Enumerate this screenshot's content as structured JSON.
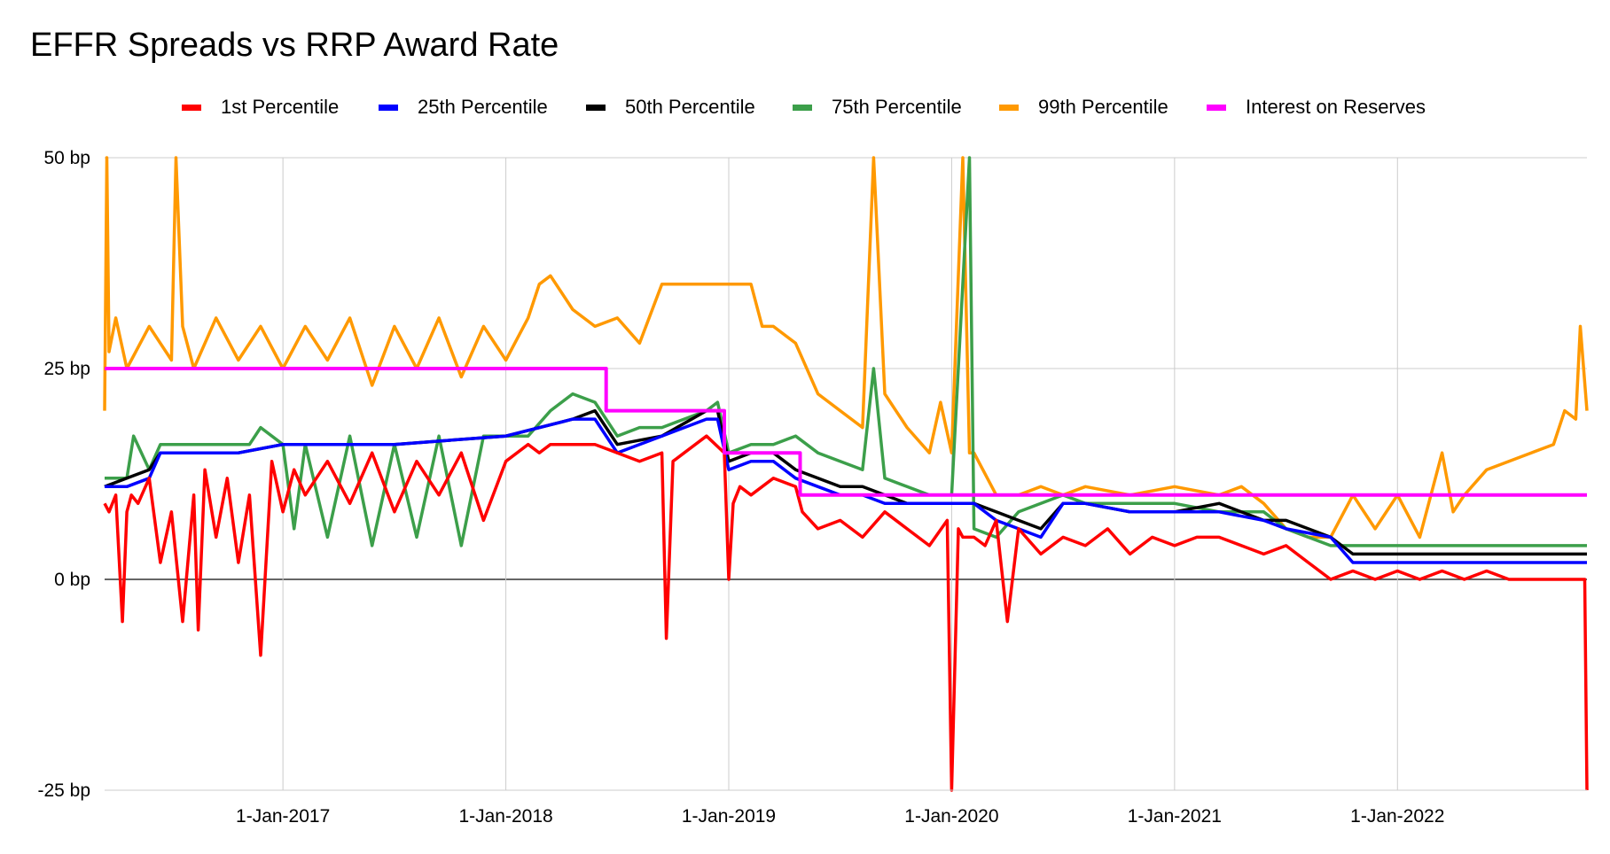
{
  "chart_data": {
    "type": "line",
    "title": "EFFR Spreads vs RRP Award Rate",
    "xlabel": "",
    "ylabel": "",
    "xlim": [
      2016.2,
      2022.85
    ],
    "ylim": [
      -25,
      50
    ],
    "y_ticks": [
      {
        "value": 50,
        "label": "50 bp"
      },
      {
        "value": 25,
        "label": "25 bp"
      },
      {
        "value": 0,
        "label": "0 bp"
      },
      {
        "value": -25,
        "label": "-25 bp"
      }
    ],
    "x_ticks": [
      {
        "value": 2017.0,
        "label": "1-Jan-2017"
      },
      {
        "value": 2018.0,
        "label": "1-Jan-2018"
      },
      {
        "value": 2019.0,
        "label": "1-Jan-2019"
      },
      {
        "value": 2020.0,
        "label": "1-Jan-2020"
      },
      {
        "value": 2021.0,
        "label": "1-Jan-2021"
      },
      {
        "value": 2022.0,
        "label": "1-Jan-2022"
      }
    ],
    "grid": true,
    "legend_position": "top",
    "series": [
      {
        "name": "1st Percentile",
        "color": "#ff0000",
        "x": [
          2016.2,
          2016.22,
          2016.25,
          2016.28,
          2016.3,
          2016.32,
          2016.35,
          2016.4,
          2016.45,
          2016.5,
          2016.55,
          2016.6,
          2016.62,
          2016.65,
          2016.7,
          2016.75,
          2016.8,
          2016.85,
          2016.9,
          2016.95,
          2017.0,
          2017.05,
          2017.1,
          2017.2,
          2017.3,
          2017.4,
          2017.5,
          2017.6,
          2017.7,
          2017.8,
          2017.9,
          2018.0,
          2018.1,
          2018.15,
          2018.2,
          2018.3,
          2018.4,
          2018.5,
          2018.6,
          2018.7,
          2018.72,
          2018.75,
          2018.8,
          2018.9,
          2018.98,
          2019.0,
          2019.02,
          2019.05,
          2019.1,
          2019.2,
          2019.3,
          2019.33,
          2019.4,
          2019.5,
          2019.6,
          2019.7,
          2019.8,
          2019.9,
          2019.98,
          2020.0,
          2020.03,
          2020.05,
          2020.1,
          2020.15,
          2020.2,
          2020.25,
          2020.3,
          2020.4,
          2020.5,
          2020.6,
          2020.7,
          2020.8,
          2020.9,
          2021.0,
          2021.1,
          2021.2,
          2021.3,
          2021.4,
          2021.5,
          2021.6,
          2021.7,
          2021.8,
          2021.9,
          2022.0,
          2022.1,
          2022.2,
          2022.3,
          2022.4,
          2022.5,
          2022.6,
          2022.7,
          2022.8,
          2022.84,
          2022.85
        ],
        "y": [
          9,
          8,
          10,
          -5,
          8,
          10,
          9,
          12,
          2,
          8,
          -5,
          10,
          -6,
          13,
          5,
          12,
          2,
          10,
          -9,
          14,
          8,
          13,
          10,
          14,
          9,
          15,
          8,
          14,
          10,
          15,
          7,
          14,
          16,
          15,
          16,
          16,
          16,
          15,
          14,
          15,
          -7,
          14,
          15,
          17,
          15,
          0,
          9,
          11,
          10,
          12,
          11,
          8,
          6,
          7,
          5,
          8,
          6,
          4,
          7,
          -25,
          6,
          5,
          5,
          4,
          7,
          -5,
          6,
          3,
          5,
          4,
          6,
          3,
          5,
          4,
          5,
          5,
          4,
          3,
          4,
          2,
          0,
          1,
          0,
          1,
          0,
          1,
          0,
          1,
          0,
          0,
          0,
          0,
          0,
          -25
        ]
      },
      {
        "name": "25th Percentile",
        "color": "#0000ff",
        "x": [
          2016.2,
          2016.3,
          2016.4,
          2016.45,
          2016.5,
          2016.7,
          2016.8,
          2017.0,
          2017.5,
          2018.0,
          2018.3,
          2018.4,
          2018.5,
          2018.7,
          2018.9,
          2018.95,
          2019.0,
          2019.1,
          2019.2,
          2019.3,
          2019.4,
          2019.5,
          2019.6,
          2019.7,
          2019.8,
          2019.9,
          2020.0,
          2020.1,
          2020.2,
          2020.3,
          2020.4,
          2020.5,
          2020.6,
          2020.8,
          2021.0,
          2021.2,
          2021.4,
          2021.5,
          2021.7,
          2021.8,
          2022.0,
          2022.2,
          2022.4,
          2022.6,
          2022.85
        ],
        "y": [
          11,
          11,
          12,
          15,
          15,
          15,
          15,
          16,
          16,
          17,
          19,
          19,
          15,
          17,
          19,
          19,
          13,
          14,
          14,
          12,
          11,
          10,
          10,
          9,
          9,
          9,
          9,
          9,
          7,
          6,
          5,
          9,
          9,
          8,
          8,
          8,
          7,
          6,
          5,
          2,
          2,
          2,
          2,
          2,
          2
        ]
      },
      {
        "name": "50th Percentile",
        "color": "#000000",
        "x": [
          2016.2,
          2016.3,
          2016.4,
          2016.45,
          2016.5,
          2016.7,
          2016.8,
          2017.0,
          2017.5,
          2018.0,
          2018.3,
          2018.4,
          2018.5,
          2018.7,
          2018.9,
          2018.95,
          2019.0,
          2019.1,
          2019.2,
          2019.3,
          2019.4,
          2019.5,
          2019.6,
          2019.7,
          2019.8,
          2019.9,
          2020.0,
          2020.1,
          2020.2,
          2020.3,
          2020.4,
          2020.5,
          2020.6,
          2020.8,
          2021.0,
          2021.2,
          2021.4,
          2021.5,
          2021.7,
          2021.8,
          2022.0,
          2022.2,
          2022.4,
          2022.6,
          2022.85
        ],
        "y": [
          11,
          12,
          13,
          15,
          15,
          15,
          15,
          16,
          16,
          17,
          19,
          20,
          16,
          17,
          20,
          20,
          14,
          15,
          15,
          13,
          12,
          11,
          11,
          10,
          9,
          9,
          9,
          9,
          8,
          7,
          6,
          9,
          9,
          8,
          8,
          9,
          7,
          7,
          5,
          3,
          3,
          3,
          3,
          3,
          3
        ]
      },
      {
        "name": "75th Percentile",
        "color": "#3c9f4a",
        "x": [
          2016.2,
          2016.3,
          2016.33,
          2016.4,
          2016.45,
          2016.5,
          2016.7,
          2016.8,
          2016.85,
          2016.9,
          2017.0,
          2017.05,
          2017.1,
          2017.2,
          2017.3,
          2017.4,
          2017.5,
          2017.6,
          2017.7,
          2017.8,
          2017.9,
          2018.0,
          2018.1,
          2018.2,
          2018.3,
          2018.4,
          2018.5,
          2018.6,
          2018.7,
          2018.8,
          2018.9,
          2018.95,
          2019.0,
          2019.1,
          2019.2,
          2019.3,
          2019.4,
          2019.5,
          2019.6,
          2019.65,
          2019.7,
          2019.8,
          2019.9,
          2020.0,
          2020.08,
          2020.1,
          2020.2,
          2020.3,
          2020.4,
          2020.5,
          2020.6,
          2020.8,
          2021.0,
          2021.2,
          2021.4,
          2021.5,
          2021.7,
          2021.8,
          2022.0,
          2022.2,
          2022.4,
          2022.6,
          2022.85
        ],
        "y": [
          12,
          12,
          17,
          13,
          16,
          16,
          16,
          16,
          16,
          18,
          16,
          6,
          16,
          5,
          17,
          4,
          16,
          5,
          17,
          4,
          17,
          17,
          17,
          20,
          22,
          21,
          17,
          18,
          18,
          19,
          20,
          21,
          15,
          16,
          16,
          17,
          15,
          14,
          13,
          25,
          12,
          11,
          10,
          10,
          50,
          6,
          5,
          8,
          9,
          10,
          9,
          9,
          9,
          8,
          8,
          6,
          4,
          4,
          4,
          4,
          4,
          4,
          4
        ]
      },
      {
        "name": "99th Percentile",
        "color": "#ff9900",
        "x": [
          2016.2,
          2016.21,
          2016.22,
          2016.25,
          2016.3,
          2016.4,
          2016.5,
          2016.52,
          2016.55,
          2016.6,
          2016.7,
          2016.8,
          2016.9,
          2017.0,
          2017.1,
          2017.2,
          2017.3,
          2017.4,
          2017.5,
          2017.6,
          2017.7,
          2017.8,
          2017.9,
          2018.0,
          2018.1,
          2018.15,
          2018.2,
          2018.3,
          2018.4,
          2018.5,
          2018.6,
          2018.7,
          2018.8,
          2018.9,
          2019.0,
          2019.1,
          2019.15,
          2019.2,
          2019.3,
          2019.4,
          2019.5,
          2019.6,
          2019.65,
          2019.7,
          2019.8,
          2019.9,
          2019.95,
          2020.0,
          2020.05,
          2020.08,
          2020.1,
          2020.2,
          2020.3,
          2020.4,
          2020.5,
          2020.6,
          2020.8,
          2021.0,
          2021.2,
          2021.3,
          2021.4,
          2021.5,
          2021.6,
          2021.7,
          2021.8,
          2021.9,
          2022.0,
          2022.1,
          2022.2,
          2022.25,
          2022.3,
          2022.4,
          2022.5,
          2022.6,
          2022.7,
          2022.75,
          2022.8,
          2022.82,
          2022.85
        ],
        "y": [
          20,
          50,
          27,
          31,
          25,
          30,
          26,
          50,
          30,
          25,
          31,
          26,
          30,
          25,
          30,
          26,
          31,
          23,
          30,
          25,
          31,
          24,
          30,
          26,
          31,
          35,
          36,
          32,
          30,
          31,
          28,
          35,
          35,
          35,
          35,
          35,
          30,
          30,
          28,
          22,
          20,
          18,
          50,
          22,
          18,
          15,
          21,
          15,
          50,
          15,
          15,
          10,
          10,
          11,
          10,
          11,
          10,
          11,
          10,
          11,
          9,
          6,
          5,
          5,
          10,
          6,
          10,
          5,
          15,
          8,
          10,
          13,
          14,
          15,
          16,
          20,
          19,
          30,
          20
        ]
      },
      {
        "name": "Interest on Reserves",
        "color": "#ff00ff",
        "x": [
          2016.2,
          2018.45,
          2018.45,
          2018.98,
          2018.98,
          2019.32,
          2019.32,
          2022.85
        ],
        "y": [
          25,
          25,
          20,
          20,
          15,
          15,
          10,
          10
        ]
      }
    ]
  }
}
